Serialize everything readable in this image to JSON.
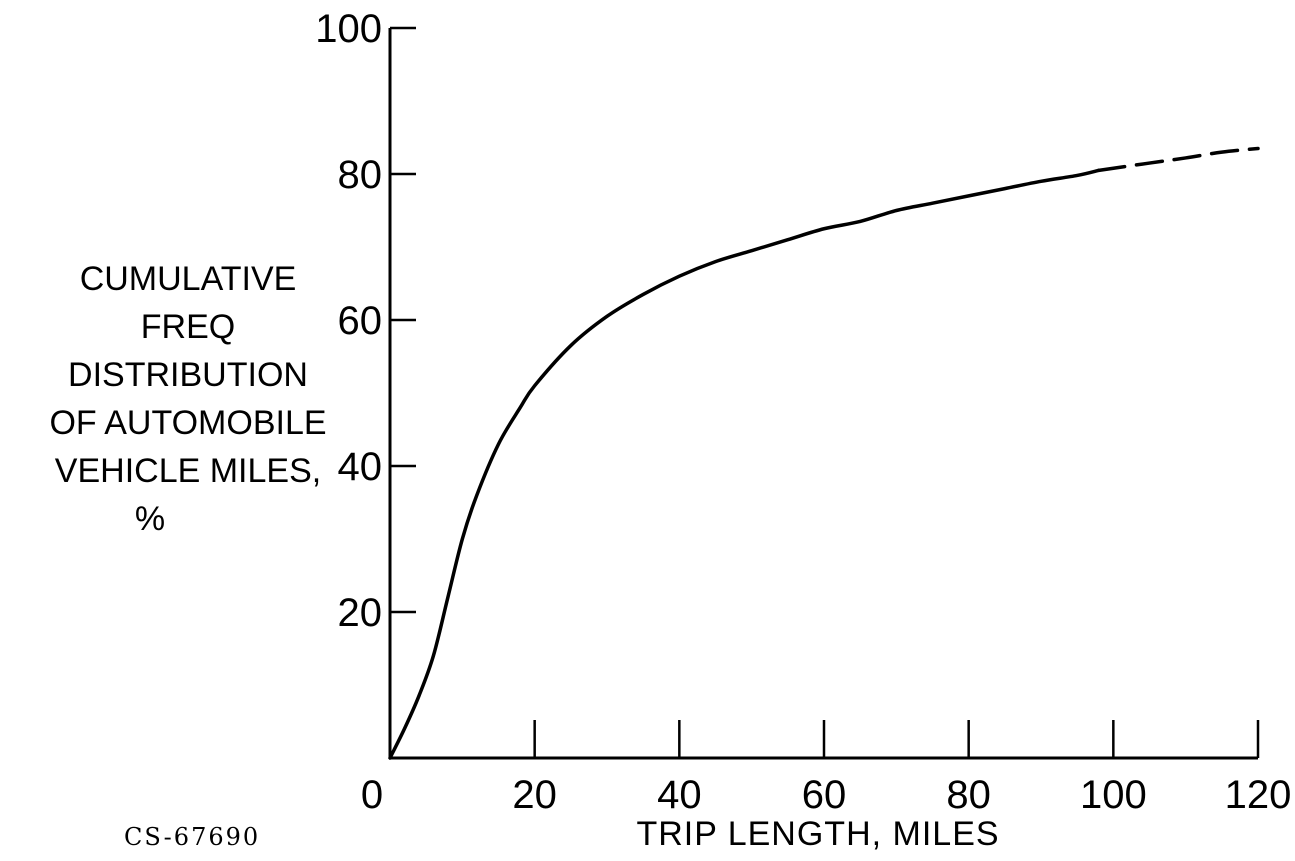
{
  "chart_data": {
    "type": "line",
    "title": "",
    "xlabel": "TRIP LENGTH, MILES",
    "ylabel_lines": [
      "CUMULATIVE",
      "FREQ",
      "DISTRIBUTION",
      "OF AUTOMOBILE",
      "VEHICLE MILES,",
      "%"
    ],
    "xlim": [
      0,
      120
    ],
    "ylim": [
      0,
      100
    ],
    "x_ticks": [
      0,
      20,
      40,
      60,
      80,
      100,
      120
    ],
    "y_ticks": [
      20,
      40,
      60,
      80,
      100
    ],
    "x_tick_labels": [
      "0",
      "20",
      "40",
      "60",
      "80",
      "100",
      "120"
    ],
    "y_tick_labels": [
      "20",
      "40",
      "60",
      "80",
      "100"
    ],
    "grid": false,
    "series": [
      {
        "style": "solid",
        "x": [
          0,
          2,
          4,
          6,
          8,
          10,
          12,
          15,
          18,
          20,
          25,
          30,
          35,
          40,
          45,
          50,
          55,
          60,
          65,
          70,
          75,
          80,
          85,
          90,
          95,
          98
        ],
        "y": [
          0,
          4,
          8.5,
          14,
          22,
          30,
          36,
          43,
          48,
          51,
          56.5,
          60.5,
          63.5,
          66,
          68,
          69.5,
          71,
          72.5,
          73.5,
          75,
          76,
          77,
          78,
          79,
          79.8,
          80.5
        ]
      },
      {
        "style": "dashed",
        "x": [
          98,
          105,
          110,
          115,
          120
        ],
        "y": [
          80.5,
          81.5,
          82.2,
          83,
          83.5
        ]
      }
    ]
  },
  "figure_id": "CS-67690"
}
